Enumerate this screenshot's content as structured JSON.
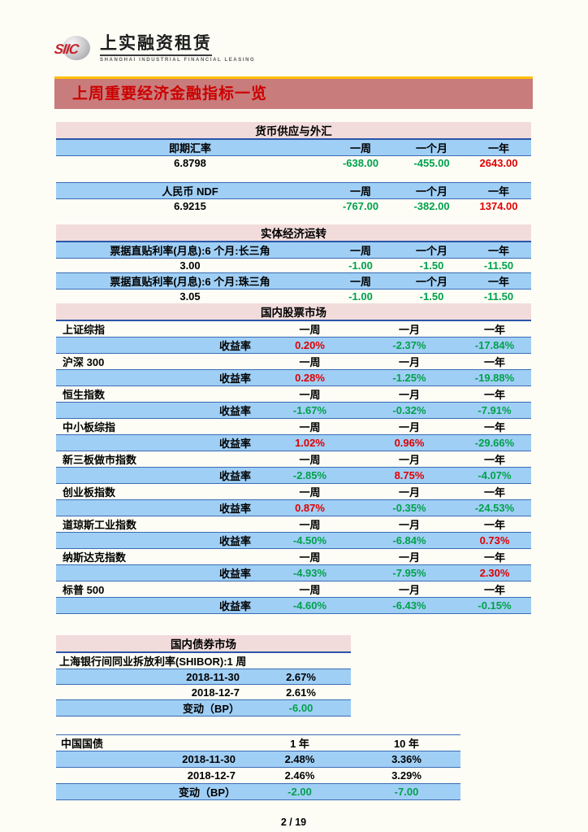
{
  "logo": {
    "mark": "SIIC",
    "company": "上实融资租赁",
    "subtitle": "SHANGHAI INDUSTRIAL FINANCIAL LEASING"
  },
  "banner": {
    "title": "上周重要经济金融指标一览"
  },
  "money_fx": {
    "section_title": "货币供应与外汇",
    "headers": [
      "一周",
      "一个月",
      "一年"
    ],
    "groups": [
      {
        "label": "即期汇率",
        "value": "6.8798",
        "changes": [
          {
            "t": "-638.00",
            "c": "green"
          },
          {
            "t": "-455.00",
            "c": "green"
          },
          {
            "t": "2643.00",
            "c": "red"
          }
        ]
      },
      {
        "label": "人民币 NDF",
        "value": "6.9215",
        "changes": [
          {
            "t": "-767.00",
            "c": "green"
          },
          {
            "t": "-382.00",
            "c": "green"
          },
          {
            "t": "1374.00",
            "c": "red"
          }
        ]
      }
    ]
  },
  "real_economy": {
    "section_title": "实体经济运转",
    "headers": [
      "一周",
      "一个月",
      "一年"
    ],
    "groups": [
      {
        "label": "票据直贴利率(月息):6 个月:长三角",
        "value": "3.00",
        "changes": [
          {
            "t": "-1.00",
            "c": "green"
          },
          {
            "t": "-1.50",
            "c": "green"
          },
          {
            "t": "-11.50",
            "c": "green"
          }
        ]
      },
      {
        "label": "票据直贴利率(月息):6 个月:珠三角",
        "value": "3.05",
        "changes": [
          {
            "t": "-1.00",
            "c": "green"
          },
          {
            "t": "-1.50",
            "c": "green"
          },
          {
            "t": "-11.50",
            "c": "green"
          }
        ]
      }
    ]
  },
  "stock_market": {
    "section_title": "国内股票市场",
    "headers": [
      "一周",
      "一月",
      "一年"
    ],
    "return_label": "收益率",
    "indices": [
      {
        "name": "上证综指",
        "r": [
          {
            "t": "0.20%",
            "c": "red"
          },
          {
            "t": "-2.37%",
            "c": "green"
          },
          {
            "t": "-17.84%",
            "c": "green"
          }
        ]
      },
      {
        "name": "沪深 300",
        "r": [
          {
            "t": "0.28%",
            "c": "red"
          },
          {
            "t": "-1.25%",
            "c": "green"
          },
          {
            "t": "-19.88%",
            "c": "green"
          }
        ]
      },
      {
        "name": "恒生指数",
        "r": [
          {
            "t": "-1.67%",
            "c": "green"
          },
          {
            "t": "-0.32%",
            "c": "green"
          },
          {
            "t": "-7.91%",
            "c": "green"
          }
        ]
      },
      {
        "name": "中小板综指",
        "r": [
          {
            "t": "1.02%",
            "c": "red"
          },
          {
            "t": "0.96%",
            "c": "red"
          },
          {
            "t": "-29.66%",
            "c": "green"
          }
        ]
      },
      {
        "name": "新三板做市指数",
        "r": [
          {
            "t": "-2.85%",
            "c": "green"
          },
          {
            "t": "8.75%",
            "c": "red"
          },
          {
            "t": "-4.07%",
            "c": "green"
          }
        ]
      },
      {
        "name": "创业板指数",
        "r": [
          {
            "t": "0.87%",
            "c": "red"
          },
          {
            "t": "-0.35%",
            "c": "green"
          },
          {
            "t": "-24.53%",
            "c": "green"
          }
        ]
      },
      {
        "name": "道琼斯工业指数",
        "r": [
          {
            "t": "-4.50%",
            "c": "green"
          },
          {
            "t": "-6.84%",
            "c": "green"
          },
          {
            "t": "0.73%",
            "c": "red"
          }
        ]
      },
      {
        "name": "纳斯达克指数",
        "r": [
          {
            "t": "-4.93%",
            "c": "green"
          },
          {
            "t": "-7.95%",
            "c": "green"
          },
          {
            "t": "2.30%",
            "c": "red"
          }
        ]
      },
      {
        "name": "标普 500",
        "r": [
          {
            "t": "-4.60%",
            "c": "green"
          },
          {
            "t": "-6.43%",
            "c": "green"
          },
          {
            "t": "-0.15%",
            "c": "green"
          }
        ]
      }
    ]
  },
  "bond_market": {
    "section_title": "国内债券市场",
    "shibor": {
      "label": "上海银行间同业拆放利率(SHIBOR):1 周",
      "rows": [
        {
          "label": "2018-11-30",
          "v": [
            {
              "t": "2.67%",
              "c": "black"
            }
          ]
        },
        {
          "label": "2018-12-7",
          "v": [
            {
              "t": "2.61%",
              "c": "black"
            }
          ]
        },
        {
          "label": "变动（BP）",
          "v": [
            {
              "t": "-6.00",
              "c": "green"
            }
          ]
        }
      ]
    },
    "treasury": {
      "label": "中国国债",
      "headers": [
        "1 年",
        "10 年"
      ],
      "rows": [
        {
          "label": "2018-11-30",
          "v": [
            {
              "t": "2.48%",
              "c": "black"
            },
            {
              "t": "3.36%",
              "c": "black"
            }
          ]
        },
        {
          "label": "2018-12-7",
          "v": [
            {
              "t": "2.46%",
              "c": "black"
            },
            {
              "t": "3.29%",
              "c": "black"
            }
          ]
        },
        {
          "label": "变动（BP）",
          "v": [
            {
              "t": "-2.00",
              "c": "green"
            },
            {
              "t": "-7.00",
              "c": "green"
            }
          ]
        }
      ]
    }
  },
  "footer": {
    "page_number": "2 / 19"
  },
  "colors": {
    "accent_red": "#cc0000",
    "banner_bg": "#c97c7c",
    "gold_line": "#fdbf01",
    "header_pink": "#f2dcdb",
    "row_blue": "#a0cff5",
    "positive_red": "#e00000",
    "negative_green": "#00a14b"
  }
}
